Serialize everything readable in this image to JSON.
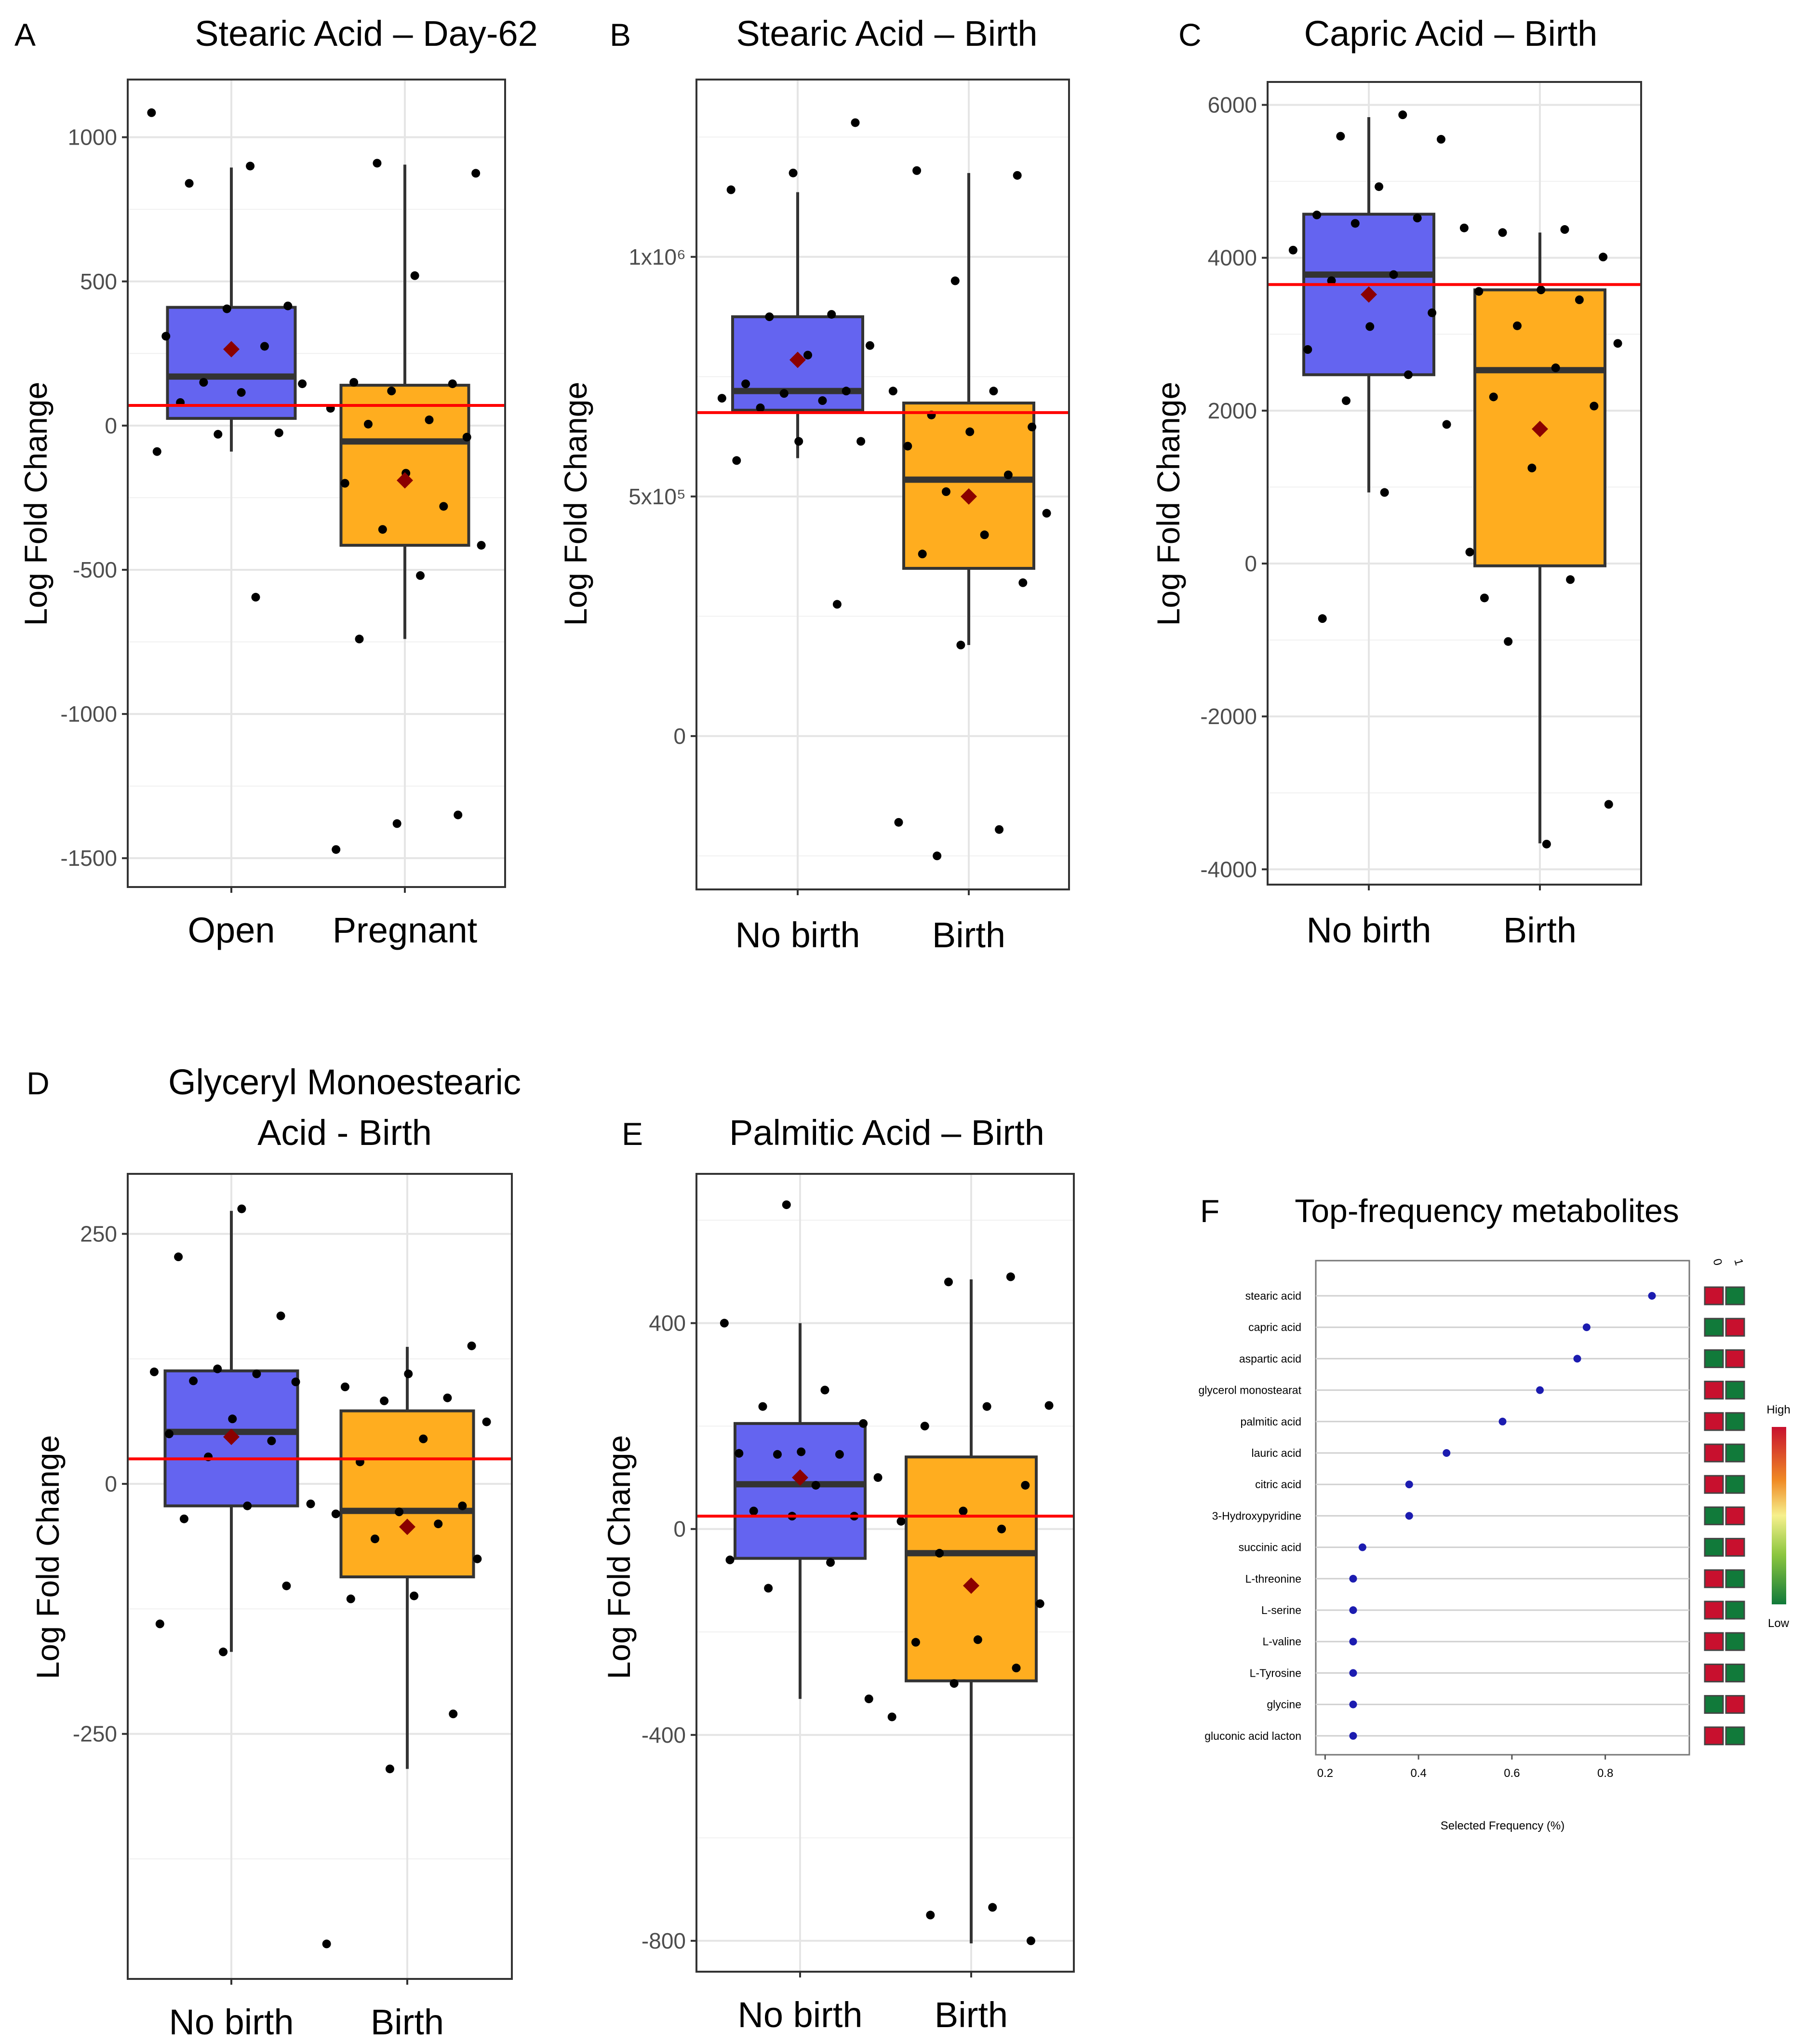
{
  "figure": {
    "colors": {
      "no_event_box": "#6464F0",
      "event_box": "#FFAD1F",
      "box_edge": "#333333",
      "reference_line": "#FF0000",
      "mean_marker": "#8B0000",
      "points": "#000000",
      "grid": "#E5E5E5",
      "dot_plot_point": "#1C1CB0",
      "heat_high": "#C8102E",
      "heat_low": "#117A3A"
    }
  },
  "chart_data": [
    {
      "panel": "A",
      "type": "box",
      "title": "Stearic Acid – Day-62",
      "ylabel": "Log Fold Change",
      "categories": [
        "Open",
        "Pregnant"
      ],
      "ylim": [
        -1600,
        1200
      ],
      "yticks": [
        1000,
        500,
        0,
        -500,
        -1000,
        -1500
      ],
      "ytick_labels": [
        "1000",
        "500",
        "0",
        "-500",
        "-1000",
        "-1500"
      ],
      "reference_line": 70,
      "boxes": [
        {
          "q1": 25,
          "median": 170,
          "q3": 410,
          "whisker_low": -90,
          "whisker_high": 895,
          "mean": 265,
          "points": [
            1085,
            900,
            840,
            415,
            405,
            310,
            275,
            150,
            145,
            115,
            80,
            -25,
            -30,
            -90,
            -595
          ]
        },
        {
          "q1": -415,
          "median": -55,
          "q3": 140,
          "whisker_low": -740,
          "whisker_high": 905,
          "mean": -190,
          "points": [
            910,
            875,
            520,
            150,
            145,
            120,
            60,
            20,
            5,
            -40,
            -165,
            -200,
            -280,
            -360,
            -415,
            -520,
            -740,
            -1350,
            -1380,
            -1470
          ]
        }
      ]
    },
    {
      "panel": "B",
      "type": "box",
      "title": "Stearic Acid – Birth",
      "ylabel": "Log Fold Change",
      "categories": [
        "No birth",
        "Birth"
      ],
      "ylim": [
        -320000,
        1370000
      ],
      "yticks": [
        1000000,
        500000,
        0
      ],
      "ytick_labels": [
        "1x10⁶",
        "5x10⁵",
        "0"
      ],
      "reference_line": 675000,
      "boxes": [
        {
          "q1": 680000,
          "median": 720000,
          "q3": 875000,
          "whisker_low": 580000,
          "whisker_high": 1135000,
          "mean": 785000,
          "points": [
            1280000,
            1175000,
            1140000,
            880000,
            875000,
            815000,
            795000,
            735000,
            720000,
            715000,
            705000,
            700000,
            685000,
            615000,
            615000,
            575000,
            275000
          ]
        },
        {
          "q1": 350000,
          "median": 535000,
          "q3": 695000,
          "whisker_low": 190000,
          "whisker_high": 1175000,
          "mean": 500000,
          "points": [
            1180000,
            1170000,
            950000,
            720000,
            720000,
            670000,
            645000,
            635000,
            605000,
            545000,
            510000,
            465000,
            420000,
            380000,
            320000,
            190000,
            -180000,
            -195000,
            -250000
          ]
        }
      ]
    },
    {
      "panel": "C",
      "type": "box",
      "title": "Capric Acid – Birth",
      "ylabel": "Log Fold Change",
      "categories": [
        "No birth",
        "Birth"
      ],
      "ylim": [
        -4200,
        6300
      ],
      "yticks": [
        6000,
        4000,
        2000,
        0,
        -2000,
        -4000
      ],
      "ytick_labels": [
        "6000",
        "4000",
        "2000",
        "0",
        "-2000",
        "-4000"
      ],
      "reference_line": 3650,
      "boxes": [
        {
          "q1": 2470,
          "median": 3780,
          "q3": 4570,
          "whisker_low": 930,
          "whisker_high": 5840,
          "mean": 3520,
          "points": [
            5870,
            5590,
            5550,
            4930,
            4560,
            4520,
            4450,
            4100,
            3780,
            3700,
            3280,
            3100,
            2800,
            2470,
            2130,
            1820,
            930,
            -720
          ]
        },
        {
          "q1": -30,
          "median": 2530,
          "q3": 3580,
          "whisker_low": -3660,
          "whisker_high": 4330,
          "mean": 1760,
          "points": [
            4390,
            4370,
            4330,
            4010,
            3580,
            3560,
            3450,
            3110,
            2880,
            2560,
            2180,
            2060,
            1250,
            150,
            -210,
            -1020,
            -3150,
            -3670,
            -450
          ]
        }
      ]
    },
    {
      "panel": "D",
      "type": "box",
      "title": "Glyceryl Monoestearic Acid - Birth",
      "title_lines": [
        "Glyceryl Monoestearic",
        "Acid - Birth"
      ],
      "ylabel": "Log Fold Change",
      "categories": [
        "No birth",
        "Birth"
      ],
      "ylim": [
        -495,
        310
      ],
      "yticks": [
        250,
        0,
        -250
      ],
      "ytick_labels": [
        "250",
        "0",
        "-250"
      ],
      "reference_line": 25,
      "boxes": [
        {
          "q1": -22,
          "median": 52,
          "q3": 113,
          "whisker_low": -168,
          "whisker_high": 273,
          "mean": 47,
          "points": [
            275,
            227,
            168,
            115,
            112,
            110,
            103,
            102,
            65,
            50,
            43,
            27,
            -20,
            -22,
            -35,
            -102,
            -168,
            -140
          ]
        },
        {
          "q1": -93,
          "median": -27,
          "q3": 73,
          "whisker_low": -285,
          "whisker_high": 137,
          "mean": -43,
          "points": [
            138,
            110,
            97,
            86,
            83,
            62,
            45,
            22,
            -22,
            -28,
            -30,
            -40,
            -55,
            -75,
            -112,
            -115,
            -230,
            -285,
            -460
          ]
        }
      ]
    },
    {
      "panel": "E",
      "type": "box",
      "title": "Palmitic Acid – Birth",
      "ylabel": "Log Fold Change",
      "categories": [
        "No birth",
        "Birth"
      ],
      "ylim": [
        -860,
        690
      ],
      "yticks": [
        400,
        0,
        -400,
        -800
      ],
      "ytick_labels": [
        "400",
        "0",
        "-400",
        "-800"
      ],
      "reference_line": 25,
      "boxes": [
        {
          "q1": -57,
          "median": 87,
          "q3": 205,
          "whisker_low": -330,
          "whisker_high": 400,
          "mean": 100,
          "points": [
            630,
            400,
            270,
            238,
            205,
            150,
            147,
            145,
            145,
            100,
            85,
            35,
            25,
            25,
            -60,
            -65,
            -115,
            -330
          ]
        },
        {
          "q1": -295,
          "median": -47,
          "q3": 140,
          "whisker_low": -805,
          "whisker_high": 485,
          "mean": -110,
          "points": [
            490,
            480,
            240,
            238,
            200,
            85,
            35,
            15,
            0,
            -47,
            -145,
            -215,
            -220,
            -270,
            -300,
            -365,
            -735,
            -750,
            -800
          ]
        }
      ]
    },
    {
      "panel": "F",
      "type": "scatter",
      "title": "Top-frequency metabolites",
      "xlabel": "Selected Frequency (%)",
      "xlim": [
        0.18,
        0.98
      ],
      "xticks": [
        0.2,
        0.4,
        0.6,
        0.8
      ],
      "xtick_labels": [
        "0.2",
        "0.4",
        "0.6",
        "0.8"
      ],
      "categories": [
        "stearic acid",
        "capric acid",
        "aspartic acid",
        "glycerol monostearat",
        "palmitic acid",
        "lauric acid",
        "citric acid",
        "3-Hydroxypyridine",
        "succinic acid",
        "L-threonine",
        "L-serine",
        "L-valine",
        "L-Tyrosine",
        "glycine",
        "gluconic acid lacton"
      ],
      "values": [
        0.9,
        0.76,
        0.74,
        0.66,
        0.58,
        0.46,
        0.38,
        0.38,
        0.28,
        0.26,
        0.26,
        0.26,
        0.26,
        0.26,
        0.26
      ],
      "heatmap": {
        "columns": [
          "0",
          "1"
        ],
        "levels": [
          [
            "high",
            "low"
          ],
          [
            "low",
            "high"
          ],
          [
            "low",
            "high"
          ],
          [
            "high",
            "low"
          ],
          [
            "high",
            "low"
          ],
          [
            "high",
            "low"
          ],
          [
            "high",
            "low"
          ],
          [
            "low",
            "high"
          ],
          [
            "low",
            "high"
          ],
          [
            "high",
            "low"
          ],
          [
            "high",
            "low"
          ],
          [
            "high",
            "low"
          ],
          [
            "high",
            "low"
          ],
          [
            "low",
            "high"
          ],
          [
            "high",
            "low"
          ]
        ]
      },
      "legend": {
        "high_label": "High",
        "low_label": "Low"
      }
    }
  ]
}
